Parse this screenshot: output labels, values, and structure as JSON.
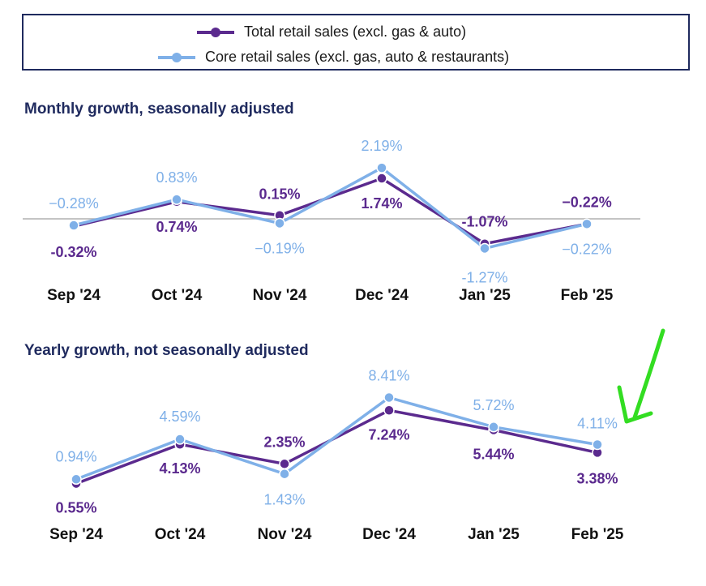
{
  "legend": {
    "total_label": "Total retail sales (excl. gas & auto)",
    "core_label": "Core retail sales (excl. gas, auto & restaurants)"
  },
  "colors": {
    "total": "#5b2a8e",
    "core": "#7fb0e8",
    "title": "#1f2a5e",
    "zero_line": "#b0b0b0",
    "annotation": "#33dd22",
    "border": "#1f2a5e"
  },
  "chart_data": [
    {
      "type": "line",
      "title": "Monthly growth, seasonally adjusted",
      "categories": [
        "Sep '24",
        "Oct '24",
        "Nov '24",
        "Dec '24",
        "Jan '25",
        "Feb '25"
      ],
      "series": [
        {
          "name": "Total retail sales (excl. gas & auto)",
          "values": [
            -0.32,
            0.74,
            0.15,
            1.74,
            -1.07,
            -0.22
          ],
          "labels": [
            "-0.32%",
            "0.74%",
            "0.15%",
            "1.74%",
            "-1.07%",
            "−0.22%"
          ]
        },
        {
          "name": "Core retail sales (excl. gas, auto & restaurants)",
          "values": [
            -0.28,
            0.83,
            -0.19,
            2.19,
            -1.27,
            -0.22
          ],
          "labels": [
            "−0.28%",
            "0.83%",
            "−0.19%",
            "2.19%",
            "-1.27%",
            "−0.22%"
          ]
        }
      ],
      "zero_line": true
    },
    {
      "type": "line",
      "title": "Yearly growth, not seasonally adjusted",
      "categories": [
        "Sep '24",
        "Oct '24",
        "Nov '24",
        "Dec '24",
        "Jan '25",
        "Feb '25"
      ],
      "series": [
        {
          "name": "Total retail sales (excl. gas & auto)",
          "values": [
            0.55,
            4.13,
            2.35,
            7.24,
            5.44,
            3.38
          ],
          "labels": [
            "0.55%",
            "4.13%",
            "2.35%",
            "7.24%",
            "5.44%",
            "3.38%"
          ]
        },
        {
          "name": "Core retail sales (excl. gas, auto & restaurants)",
          "values": [
            0.94,
            4.59,
            1.43,
            8.41,
            5.72,
            4.11
          ],
          "labels": [
            "0.94%",
            "4.59%",
            "1.43%",
            "8.41%",
            "5.72%",
            "4.11%"
          ]
        }
      ],
      "zero_line": false
    }
  ]
}
